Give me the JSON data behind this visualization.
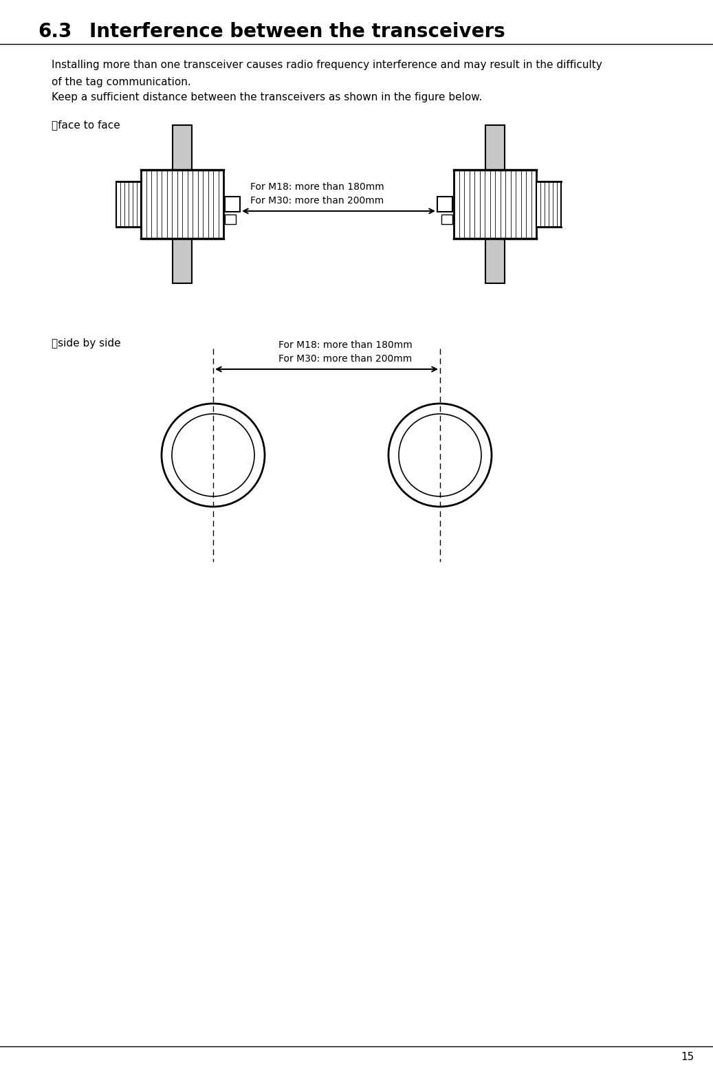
{
  "title_num": "6.3",
  "title_text": "Interference between the transceivers",
  "body_text_1": "Installing more than one transceiver causes radio frequency interference and may result in the difficulty",
  "body_text_2": "of the tag communication.",
  "body_text_3": "Keep a sufficient distance between the transceivers as shown in the figure below.",
  "label_face_to_face": "・face to face",
  "label_side_by_side": "・side by side",
  "dim_text_1": "For M18: more than 180mm",
  "dim_text_2": "For M30: more than 200mm",
  "background_color": "#ffffff",
  "text_color": "#000000",
  "gray_color": "#c8c8c8",
  "line_color": "#000000",
  "page_number": "15"
}
